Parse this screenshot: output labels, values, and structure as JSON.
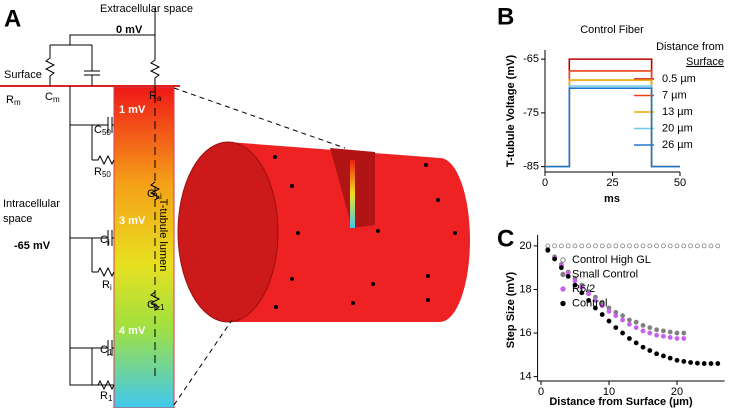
{
  "panel_a": {
    "label": "A",
    "extracellular": "Extracellular space",
    "v_out": "0 mV",
    "surface": "Surface",
    "intracellular": [
      "Intracellular",
      "space"
    ],
    "v_in": "-65 mV",
    "lumen": "T-tubule lumen",
    "lumen_voltages": [
      "1 mV",
      "3 mV",
      "4 mV"
    ],
    "components": [
      {
        "main": "R",
        "sub": "m"
      },
      {
        "main": "C",
        "sub": "m"
      },
      {
        "main": "R",
        "sub": "a"
      },
      {
        "main": "C",
        "sub": "50"
      },
      {
        "main": "R",
        "sub": "50"
      },
      {
        "main": "G",
        "sub": "Li"
      },
      {
        "main": "C",
        "sub": "i"
      },
      {
        "main": "R",
        "sub": "i"
      },
      {
        "main": "G",
        "sub": "L1"
      },
      {
        "main": "C",
        "sub": "1"
      },
      {
        "main": "R",
        "sub": "1"
      }
    ]
  },
  "chart_data": [
    {
      "type": "line",
      "panel": "B",
      "title": "Control Fiber",
      "x_label": "ms",
      "y_label": "T-tubule Voltage (mV)",
      "legend_title": [
        "Distance from",
        "Surface"
      ],
      "x": [
        0,
        9,
        9,
        39.5,
        39.5,
        50
      ],
      "series": [
        {
          "name": "0.5 µm",
          "color": "#c00000",
          "values": [
            -85,
            -85,
            -65,
            -65,
            -85,
            -85
          ]
        },
        {
          "name": "7 µm",
          "color": "#e8431a",
          "values": [
            -85,
            -85,
            -67.2,
            -67.2,
            -85,
            -85
          ]
        },
        {
          "name": "13 µm",
          "color": "#f0a800",
          "values": [
            -85,
            -85,
            -68.9,
            -68.9,
            -85,
            -85
          ]
        },
        {
          "name": "20 µm",
          "color": "#6ccbea",
          "values": [
            -85,
            -85,
            -70,
            -70,
            -85,
            -85
          ]
        },
        {
          "name": "26 µm",
          "color": "#1f78d0",
          "values": [
            -85,
            -85,
            -70.4,
            -70.4,
            -85,
            -85
          ]
        }
      ],
      "xlim": [
        0,
        50
      ],
      "xticks": [
        0,
        25,
        50
      ],
      "ylim": [
        -86,
        -63.3
      ],
      "yticks": [
        -65,
        -75,
        -85
      ],
      "grid": false
    },
    {
      "type": "scatter",
      "panel": "C",
      "x_label": "Distance from Surface (µm)",
      "y_label": "Step Size (mV)",
      "series": [
        {
          "name": "Control High GL",
          "color": "#808080",
          "marker": "open",
          "x": [
            1,
            2,
            3,
            4,
            5,
            6,
            7,
            8,
            9,
            10,
            11,
            12,
            13,
            14,
            15,
            16,
            17,
            18,
            19,
            20,
            21,
            22,
            23,
            24,
            25,
            26
          ],
          "values": [
            20,
            20,
            20,
            20,
            20,
            20,
            20,
            20,
            20,
            20,
            20,
            20,
            20,
            20,
            20,
            20,
            20,
            20,
            20,
            20,
            20,
            20,
            20,
            20,
            20,
            20
          ]
        },
        {
          "name": "Small Control",
          "color": "#808080",
          "marker": "filled",
          "x": [
            1,
            2,
            3,
            4,
            5,
            6,
            7,
            8,
            9,
            10,
            11,
            12,
            13,
            14,
            15,
            16,
            17,
            18,
            19,
            20,
            21
          ],
          "values": [
            19.85,
            19.5,
            19.15,
            18.8,
            18.5,
            18.2,
            17.9,
            17.65,
            17.4,
            17.15,
            16.95,
            16.8,
            16.6,
            16.5,
            16.35,
            16.25,
            16.15,
            16.1,
            16.05,
            16,
            16
          ]
        },
        {
          "name": "R6/2",
          "color": "#c860f0",
          "marker": "filled",
          "x": [
            1,
            2,
            3,
            4,
            5,
            6,
            7,
            8,
            9,
            10,
            11,
            12,
            13,
            14,
            15,
            16,
            17,
            18,
            19,
            20,
            21
          ],
          "values": [
            19.8,
            19.45,
            19.1,
            18.75,
            18.4,
            18.1,
            17.8,
            17.5,
            17.25,
            17,
            16.8,
            16.6,
            16.4,
            16.25,
            16.1,
            16,
            15.9,
            15.85,
            15.8,
            15.75,
            15.75
          ]
        },
        {
          "name": "Control",
          "color": "#000000",
          "marker": "filled",
          "x": [
            1,
            2,
            3,
            4,
            5,
            6,
            7,
            8,
            9,
            10,
            11,
            12,
            13,
            14,
            15,
            16,
            17,
            18,
            19,
            20,
            21,
            22,
            23,
            24,
            25,
            26
          ],
          "values": [
            19.8,
            19.4,
            19,
            18.6,
            18.2,
            17.85,
            17.5,
            17.15,
            16.85,
            16.55,
            16.25,
            16,
            15.75,
            15.55,
            15.35,
            15.2,
            15.05,
            14.95,
            14.85,
            14.75,
            14.7,
            14.65,
            14.62,
            14.6,
            14.6,
            14.6
          ]
        }
      ],
      "xlim": [
        -0.5,
        27
      ],
      "xticks": [
        0,
        10,
        20
      ],
      "ylim": [
        13.8,
        20.5
      ],
      "yticks": [
        20,
        18,
        16,
        14
      ],
      "grid": false
    }
  ]
}
